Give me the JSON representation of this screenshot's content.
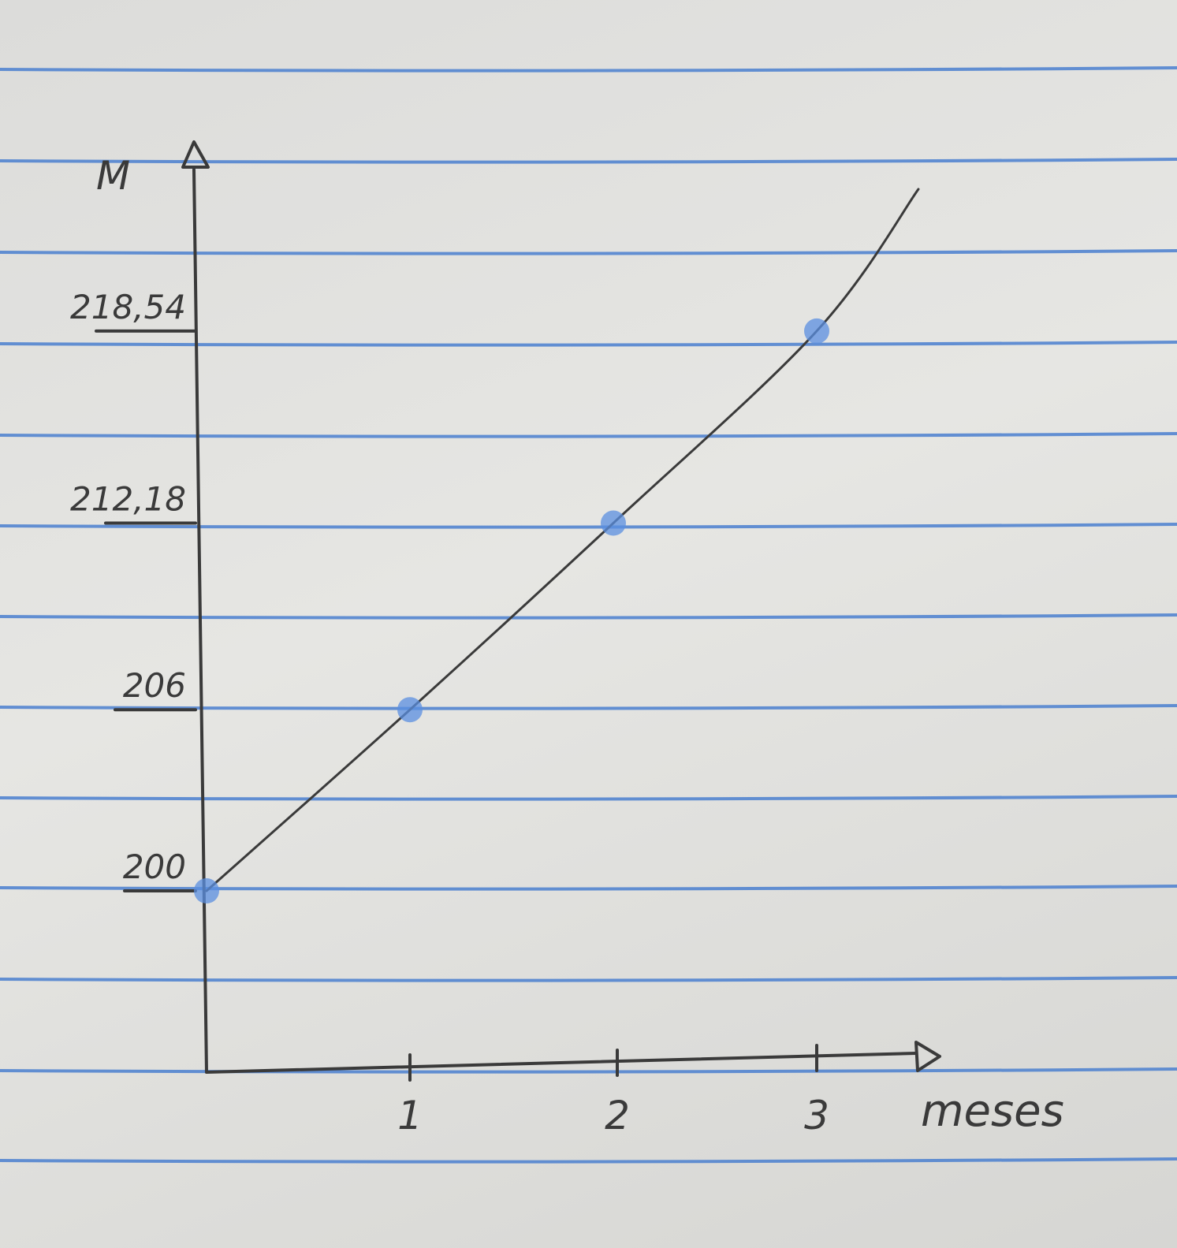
{
  "paper": {
    "rule_color": "#4a7fcf",
    "ink_color": "#3a3a3a",
    "point_color": "#5b8fe0"
  },
  "chart_data": {
    "type": "line",
    "title": "",
    "xlabel": "meses",
    "ylabel": "M",
    "x_ticks": [
      "1",
      "2",
      "3"
    ],
    "y_ticks": [
      "200",
      "206",
      "212,18",
      "218,54"
    ],
    "points": [
      {
        "x": 0,
        "y": 200
      },
      {
        "x": 1,
        "y": 206
      },
      {
        "x": 2,
        "y": 212.18
      },
      {
        "x": 3,
        "y": 218.54
      }
    ],
    "curve_extends_to_x": 3.5,
    "grid": false,
    "legend": "none"
  }
}
